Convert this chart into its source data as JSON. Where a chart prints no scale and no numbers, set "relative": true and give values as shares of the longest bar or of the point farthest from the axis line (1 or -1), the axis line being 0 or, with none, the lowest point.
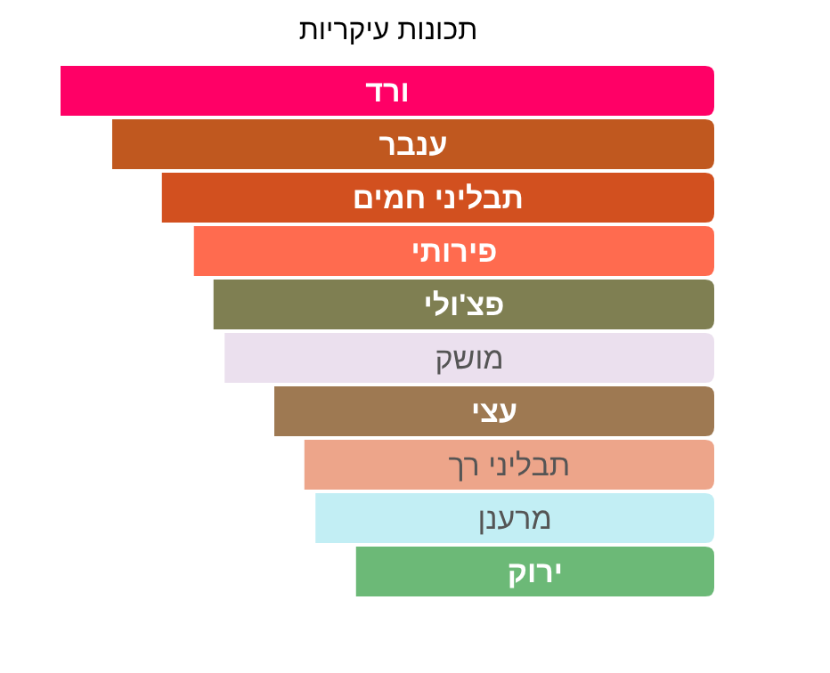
{
  "chart_data": {
    "type": "bar",
    "orientation": "horizontal",
    "relative": true,
    "title": "תכונות עיקריות",
    "categories": [
      "ורד",
      "ענבר",
      "תבליני חמים",
      "פירותי",
      "פצ'ולי",
      "מושק",
      "עצי",
      "תבליני רך",
      "מרענן",
      "ירוק"
    ],
    "values": [
      1,
      0.921,
      0.845,
      0.796,
      0.766,
      0.749,
      0.673,
      0.627,
      0.61,
      0.548
    ],
    "colors": [
      "#ff0066",
      "#c0581f",
      "#d2501f",
      "#ff6b4f",
      "#7f7f52",
      "#ebe0ee",
      "#9e7952",
      "#eda58a",
      "#c2eef4",
      "#6cb977"
    ]
  }
}
